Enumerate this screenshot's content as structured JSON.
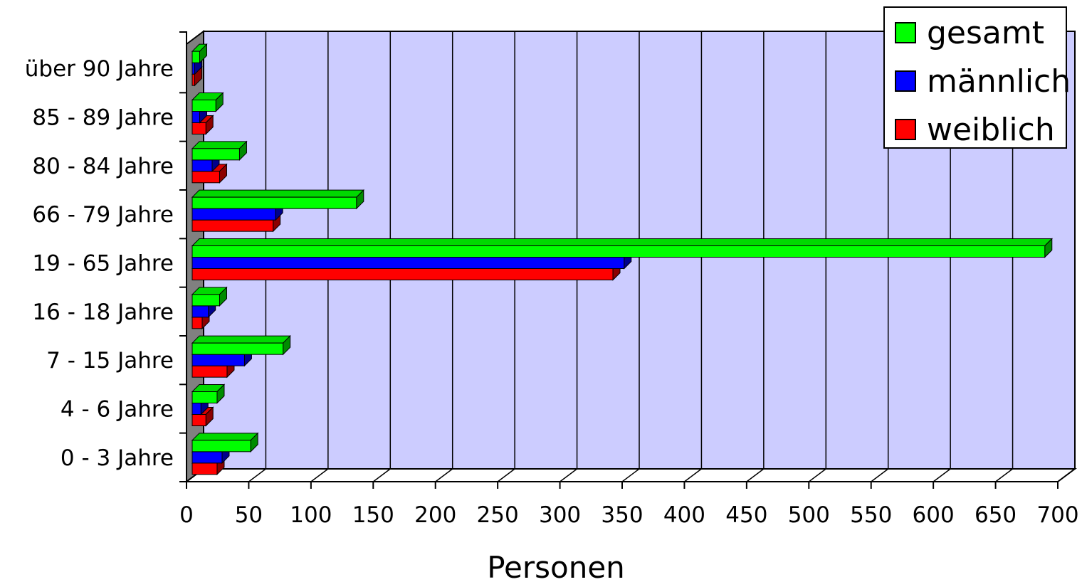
{
  "chart_data": {
    "type": "bar",
    "orientation": "horizontal",
    "style": "3d",
    "categories": [
      "0 - 3 Jahre",
      "4 - 6 Jahre",
      "7 - 15 Jahre",
      "16 - 18 Jahre",
      "19 - 65 Jahre",
      "66 - 79 Jahre",
      "80 - 84 Jahre",
      "85 - 89 Jahre",
      "über 90 Jahre"
    ],
    "series": [
      {
        "name": "gesamt",
        "color": "#00ff00",
        "values": [
          47,
          20,
          73,
          22,
          685,
          132,
          38,
          19,
          6
        ]
      },
      {
        "name": "männlich",
        "color": "#0000ff",
        "values": [
          24,
          7,
          42,
          13,
          347,
          67,
          16,
          6,
          2
        ]
      },
      {
        "name": "weiblich",
        "color": "#ff0000",
        "values": [
          20,
          11,
          28,
          8,
          338,
          65,
          22,
          11,
          2
        ]
      }
    ],
    "xlabel": "Personen",
    "ylabel": "",
    "xlim": [
      0,
      700
    ],
    "xticks": [
      0,
      50,
      100,
      150,
      200,
      250,
      300,
      350,
      400,
      450,
      500,
      550,
      600,
      650,
      700
    ],
    "grid": true,
    "legend": "top-right",
    "wall_color": "#ccccff",
    "floor_color": "#808080"
  }
}
